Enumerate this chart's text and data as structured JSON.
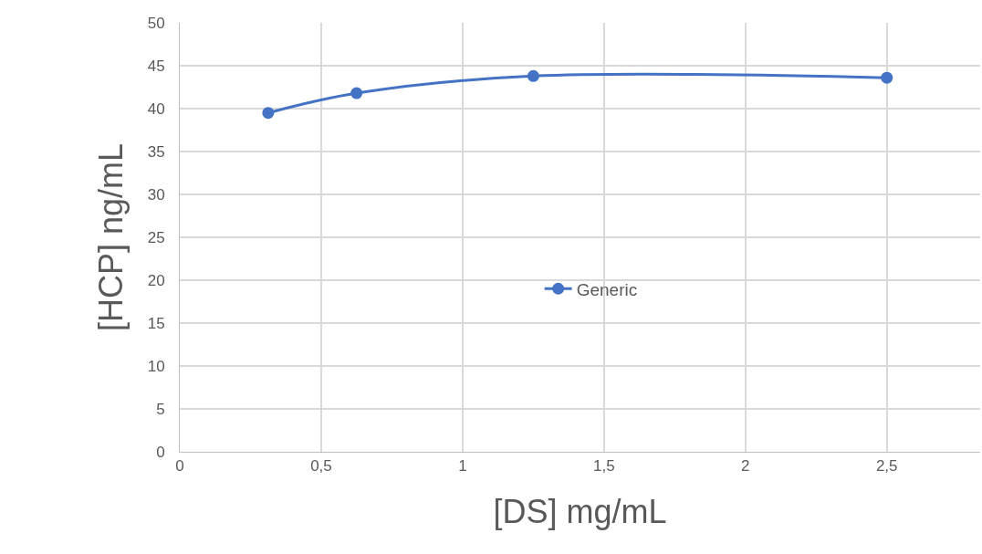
{
  "chart_data": {
    "type": "line",
    "xlabel": "[DS] mg/mL",
    "ylabel": "[HCP] ng/mL",
    "x": [
      0.3125,
      0.625,
      1.25,
      2.5
    ],
    "series": [
      {
        "name": "Generic",
        "color": "#4472c4",
        "values": [
          39.5,
          41.8,
          43.8,
          43.6
        ]
      }
    ],
    "xlim": [
      0,
      2.83
    ],
    "xticks": [
      0,
      {
        "value": 0.5,
        "label": "0,5"
      },
      1,
      {
        "value": 1.5,
        "label": "1,5"
      },
      2,
      {
        "value": 2.5,
        "label": "2,5"
      }
    ],
    "ylim": [
      0,
      50
    ],
    "yticks": [
      0,
      5,
      10,
      15,
      20,
      25,
      30,
      35,
      40,
      45,
      50
    ],
    "grid": true,
    "legend": "center",
    "marker": "circle",
    "line_style": "solid"
  }
}
